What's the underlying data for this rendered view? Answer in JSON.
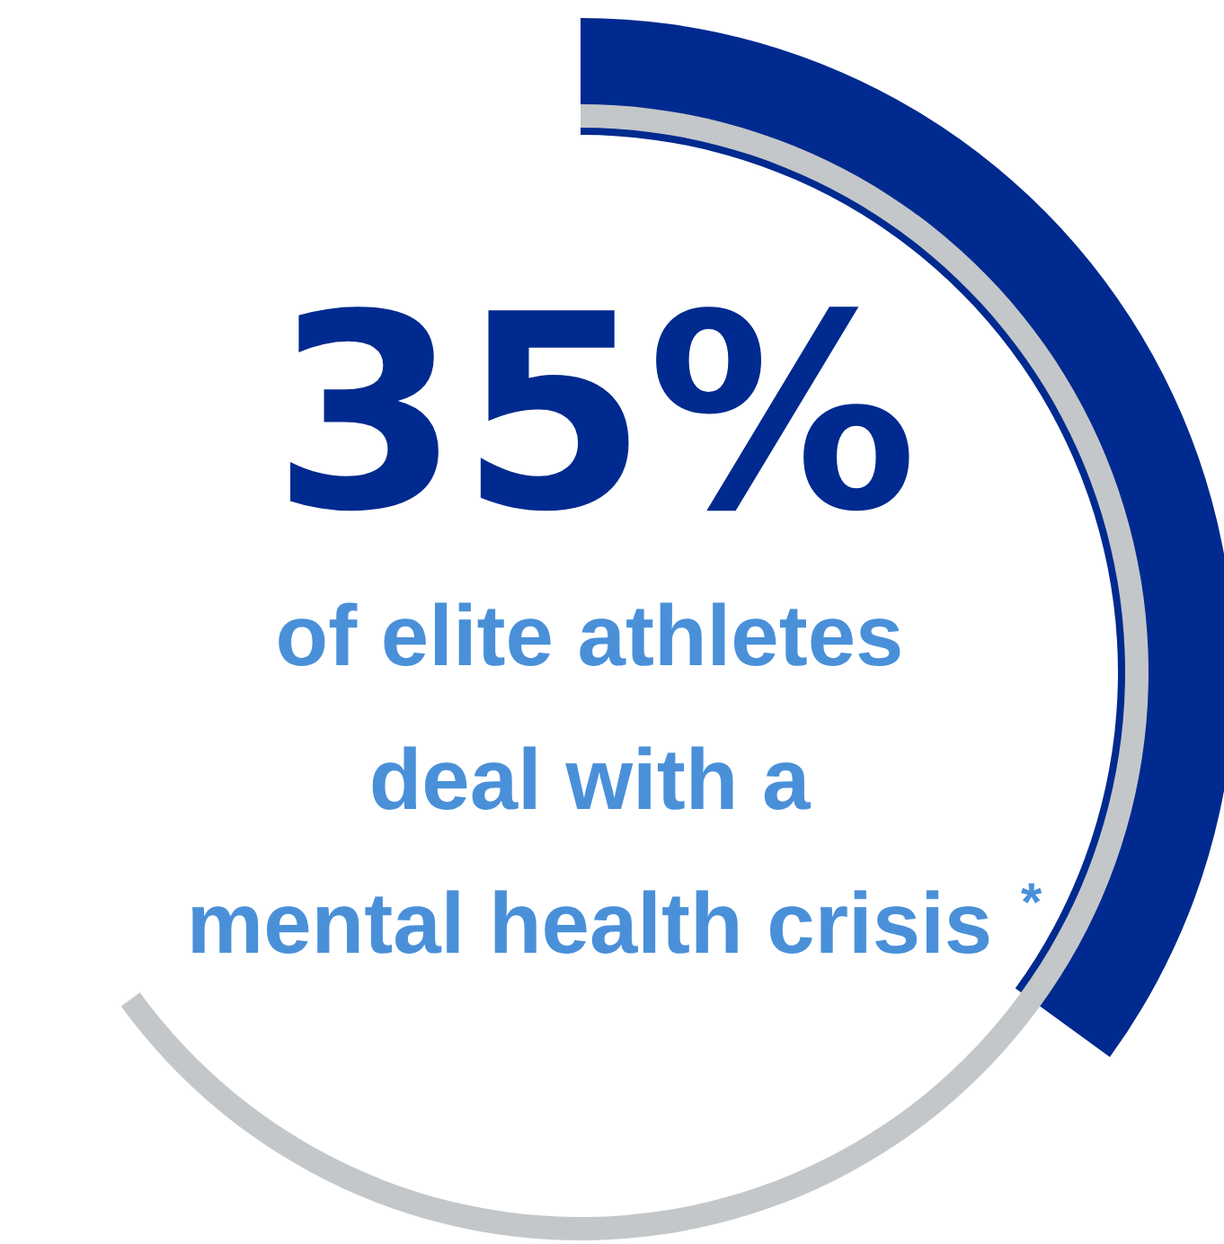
{
  "chart_data": {
    "type": "donut",
    "categories": [
      null,
      null
    ],
    "values": [
      35,
      65
    ],
    "colors": [
      "#002a8f",
      "#c3c7c9"
    ],
    "value_labels": [
      "35%",
      null
    ],
    "annotations": [
      "of elite athletes",
      "deal with a",
      "mental health crisis$^{*}$"
    ]
  }
}
